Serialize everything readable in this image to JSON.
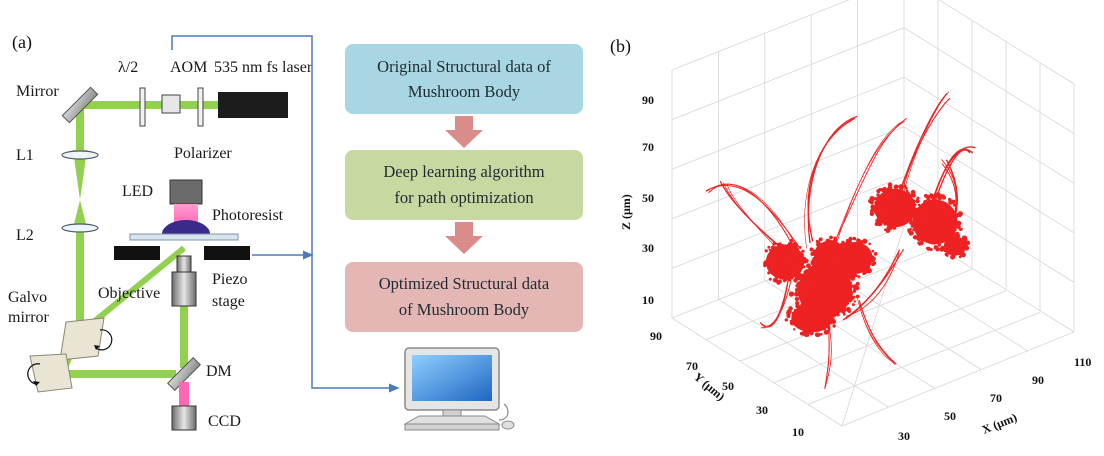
{
  "panel_a": {
    "label": "(a)",
    "components": {
      "half_wave": "λ/2",
      "aom": "AOM",
      "laser": "535 nm fs laser",
      "mirror": "Mirror",
      "polarizer": "Polarizer",
      "l1": "L1",
      "l2": "L2",
      "led": "LED",
      "photoresist": "Photoresist",
      "piezo_line1": "Piezo",
      "piezo_line2": "stage",
      "objective": "Objective",
      "galvo_line1": "Galvo",
      "galvo_line2": "mirror",
      "dm": "DM",
      "ccd": "CCD"
    },
    "flow": [
      {
        "line1": "Original Structural data of",
        "line2": "Mushroom Body",
        "color": "#a9d6e3"
      },
      {
        "line1": "Deep learning algorithm",
        "line2": "for path optimization",
        "color": "#c6d9a0"
      },
      {
        "line1": "Optimized Structural data",
        "line2": "of Mushroom Body",
        "color": "#e4b7b5"
      }
    ],
    "colors": {
      "beam": "#92d050",
      "fluorescence": "#ff66b3",
      "arrow": "#d98c8a",
      "connector": "#4a7ab8"
    }
  },
  "panel_b": {
    "label": "(b)",
    "z_label": "Z (μm)",
    "y_label": "Y (μm)",
    "x_label": "X (μm)",
    "z_ticks": [
      "10",
      "30",
      "50",
      "70",
      "90"
    ],
    "y_ticks": [
      "10",
      "30",
      "50",
      "70",
      "90"
    ],
    "x_ticks": [
      "30",
      "50",
      "70",
      "90",
      "110"
    ],
    "point_color": "#ee2222"
  }
}
